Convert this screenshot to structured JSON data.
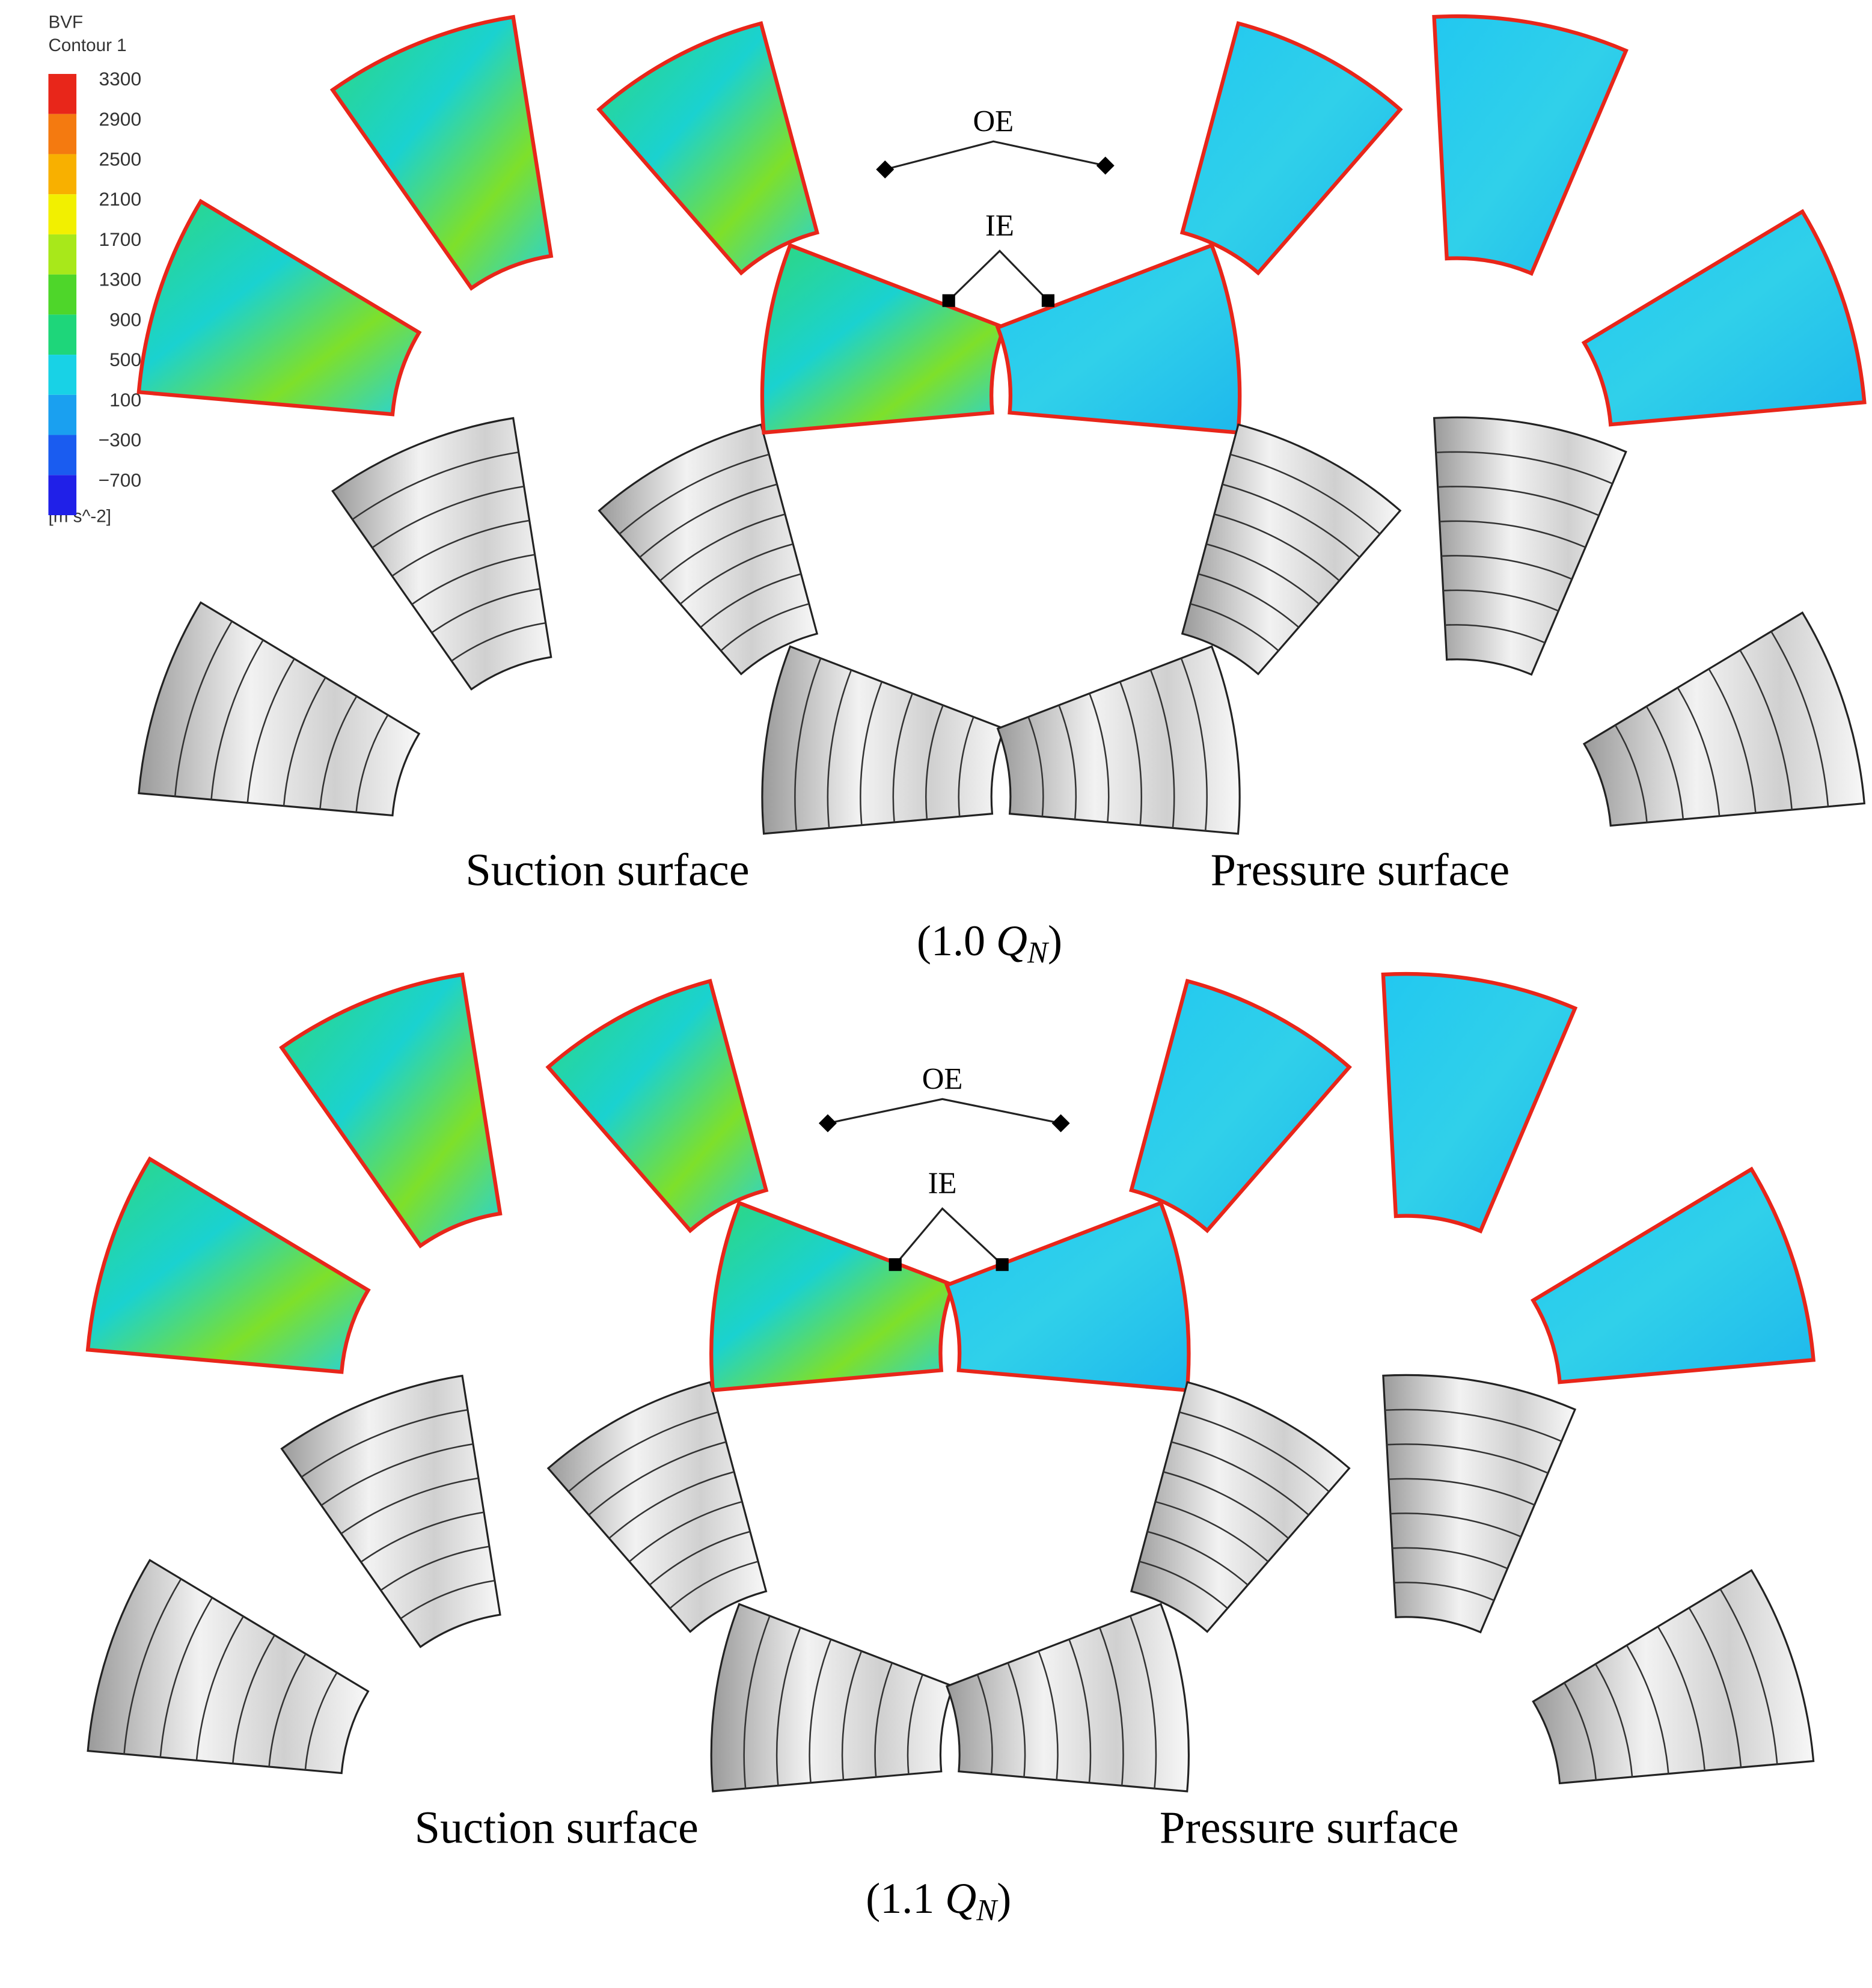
{
  "legend": {
    "title": "BVF",
    "subtitle": "Contour 1",
    "labels": [
      "3300",
      "2900",
      "2500",
      "2100",
      "1700",
      "1300",
      "900",
      "500",
      "100",
      "−300",
      "−700"
    ],
    "colors": [
      "#e8261a",
      "#f47a10",
      "#f8b000",
      "#f2f000",
      "#a8e81a",
      "#4ed62a",
      "#1ed67a",
      "#18d2e6",
      "#1aa0f0",
      "#1a5cf0",
      "#2020e8"
    ],
    "unit": "[m s^-2]"
  },
  "panels": [
    {
      "outlet_label": "OE",
      "inlet_label": "IE",
      "left_label": "Suction surface",
      "right_label": "Pressure surface",
      "caption": {
        "prefix": "(1.0 ",
        "symbol": "Q",
        "subscript": "N",
        "suffix": ")"
      }
    },
    {
      "outlet_label": "OE",
      "inlet_label": "IE",
      "left_label": "Suction surface",
      "right_label": "Pressure surface",
      "caption": {
        "prefix": "(1.1 ",
        "symbol": "Q",
        "subscript": "N",
        "suffix": ")"
      }
    }
  ]
}
